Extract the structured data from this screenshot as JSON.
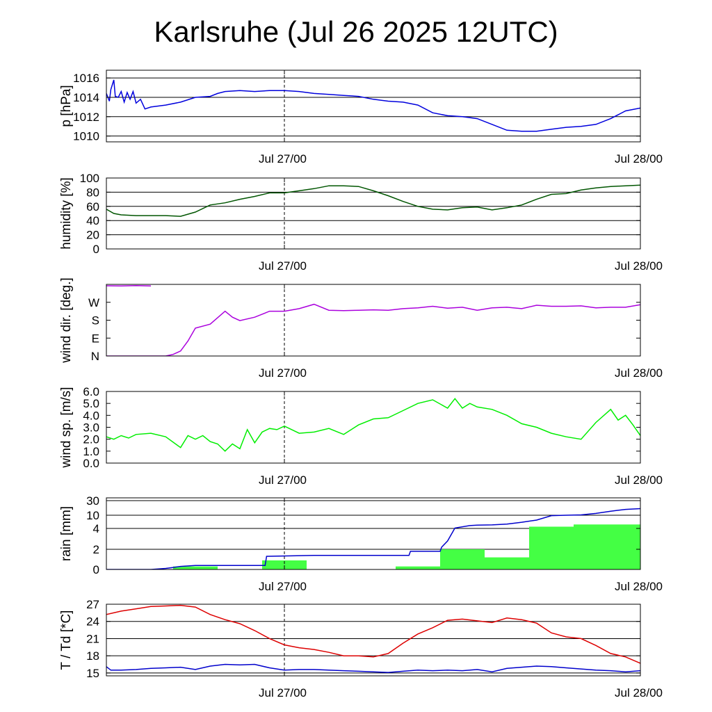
{
  "title": "Karlsruhe (Jul 26 2025 12UTC)",
  "x_axis": {
    "tick_labels": [
      "Jul 27/00",
      "Jul 28/00"
    ],
    "ticks_h": [
      12,
      36
    ],
    "range_h": [
      0,
      36
    ]
  },
  "colors": {
    "pressure": "#0000dd",
    "humidity": "#005500",
    "wind_dir": "#aa00dd",
    "wind_speed": "#00ee00",
    "rain_bar": "#44ff44",
    "rain_cum": "#0000cc",
    "temperature": "#dd0000",
    "dewpoint": "#0000cc"
  },
  "chart_data": [
    {
      "type": "line",
      "ylabel": "p [hPa]",
      "ylim": [
        1009.4,
        1016.8
      ],
      "yticks": [
        1010,
        1012,
        1014,
        1016
      ],
      "ytick_labels": [
        "1010",
        "1012",
        "1014",
        "1016"
      ],
      "grid": true,
      "series": [
        {
          "color_key": "pressure",
          "x": [
            0,
            0.2,
            0.3,
            0.5,
            0.6,
            0.8,
            1.0,
            1.2,
            1.4,
            1.6,
            1.8,
            2.0,
            2.3,
            2.6,
            3,
            4,
            5,
            6,
            7,
            7.5,
            8,
            9,
            10,
            11,
            12,
            13,
            14,
            15,
            16,
            17,
            18,
            19,
            20,
            21,
            22,
            23,
            24,
            25,
            26,
            27,
            28,
            29,
            30,
            31,
            32,
            33,
            34,
            35,
            36
          ],
          "y": [
            1014.4,
            1013.6,
            1014.8,
            1015.8,
            1014.1,
            1014.0,
            1014.6,
            1013.5,
            1014.5,
            1013.8,
            1014.6,
            1013.4,
            1013.8,
            1012.8,
            1013.0,
            1013.2,
            1013.5,
            1014.0,
            1014.1,
            1014.4,
            1014.6,
            1014.7,
            1014.6,
            1014.7,
            1014.7,
            1014.6,
            1014.4,
            1014.3,
            1014.2,
            1014.1,
            1013.8,
            1013.6,
            1013.5,
            1013.2,
            1012.4,
            1012.1,
            1012.0,
            1011.8,
            1011.2,
            1010.6,
            1010.5,
            1010.5,
            1010.7,
            1010.9,
            1011.0,
            1011.2,
            1011.8,
            1012.6,
            1012.9
          ]
        }
      ]
    },
    {
      "type": "line",
      "ylabel": "humidity [%]",
      "ylim": [
        0,
        100
      ],
      "yticks": [
        0,
        20,
        40,
        60,
        80,
        100
      ],
      "ytick_labels": [
        "0",
        "20",
        "40",
        "60",
        "80",
        "100"
      ],
      "grid": true,
      "series": [
        {
          "color_key": "humidity",
          "x": [
            0,
            0.5,
            1,
            2,
            3,
            4,
            5,
            6,
            7,
            8,
            9,
            10,
            11,
            12,
            13,
            14,
            15,
            16,
            17,
            18,
            19,
            20,
            21,
            22,
            23,
            24,
            25,
            26,
            27,
            28,
            29,
            30,
            31,
            32,
            33,
            34,
            35,
            36
          ],
          "y": [
            56,
            50,
            48,
            47,
            47,
            47,
            46,
            52,
            62,
            65,
            70,
            74,
            79,
            79,
            82,
            85,
            89,
            89,
            88,
            82,
            75,
            67,
            60,
            56,
            55,
            58,
            59,
            55,
            58,
            62,
            70,
            77,
            78,
            83,
            86,
            88,
            89,
            90
          ]
        }
      ]
    },
    {
      "type": "line",
      "ylabel": "wind dir. [deg.]",
      "ylim": [
        0,
        360
      ],
      "yticks": [
        0,
        90,
        180,
        270
      ],
      "ytick_labels": [
        "N",
        "E",
        "S",
        "W"
      ],
      "grid": false,
      "series": [
        {
          "color_key": "wind_dir",
          "x": [
            0,
            1,
            2,
            3
          ],
          "y": [
            353,
            352,
            354,
            352
          ]
        },
        {
          "color_key": "wind_dir",
          "x": [
            0,
            1,
            2,
            3,
            4,
            4.5,
            5,
            5.5,
            6,
            7,
            8,
            8.5,
            9,
            10,
            11,
            12,
            13,
            14,
            15,
            16,
            17,
            18,
            19,
            20,
            21,
            22,
            23,
            24,
            25,
            26,
            27,
            28,
            29,
            30,
            31,
            32,
            33,
            34,
            35,
            36
          ],
          "y": [
            0,
            0,
            0,
            0,
            0,
            8,
            25,
            75,
            140,
            160,
            225,
            195,
            178,
            195,
            225,
            225,
            238,
            260,
            230,
            228,
            230,
            232,
            230,
            238,
            242,
            250,
            240,
            245,
            230,
            242,
            245,
            238,
            255,
            250,
            250,
            252,
            242,
            245,
            245,
            258
          ]
        }
      ]
    },
    {
      "type": "line",
      "ylabel": "wind sp. [m/s]",
      "ylim": [
        0,
        6
      ],
      "yticks": [
        0,
        1,
        2,
        3,
        4,
        5,
        6
      ],
      "ytick_labels": [
        "0.0",
        "1.0",
        "2.0",
        "3.0",
        "4.0",
        "5.0",
        "6.0"
      ],
      "grid": false,
      "series": [
        {
          "color_key": "wind_speed",
          "x": [
            0,
            0.5,
            1,
            1.5,
            2,
            3,
            4,
            5,
            5.5,
            6,
            6.5,
            7,
            7.5,
            8,
            8.5,
            9,
            9.5,
            10,
            10.5,
            11,
            11.5,
            12,
            13,
            14,
            15,
            16,
            17,
            18,
            19,
            20,
            21,
            22,
            23,
            23.5,
            24,
            24.5,
            25,
            26,
            27,
            28,
            29,
            30,
            31,
            32,
            33,
            34,
            34.5,
            35,
            35.5,
            36
          ],
          "y": [
            2.2,
            2.0,
            2.3,
            2.1,
            2.4,
            2.5,
            2.2,
            1.3,
            2.3,
            2.0,
            2.3,
            1.8,
            1.6,
            1.0,
            1.6,
            1.2,
            2.8,
            1.7,
            2.6,
            2.9,
            2.8,
            3.1,
            2.5,
            2.6,
            2.9,
            2.4,
            3.2,
            3.7,
            3.8,
            4.4,
            5.0,
            5.3,
            4.6,
            5.4,
            4.6,
            5.0,
            4.7,
            4.5,
            4.0,
            3.3,
            3.0,
            2.5,
            2.2,
            2.0,
            3.4,
            4.5,
            3.6,
            4.0,
            3.2,
            2.3
          ]
        }
      ]
    },
    {
      "type": "bar",
      "ylabel": "rain [mm]",
      "yticks": [
        0,
        2,
        4,
        10,
        30
      ],
      "ytick_labels": [
        "0",
        "2",
        "4",
        "10",
        "30"
      ],
      "grid": true,
      "bars": {
        "color_key": "rain_bar",
        "x_start": [
          4.5,
          7.5,
          10.5,
          13.5,
          19.5,
          22.5,
          25.5,
          28.5,
          31.5
        ],
        "x_end": [
          7.5,
          10.5,
          13.5,
          16.5,
          22.5,
          25.5,
          28.5,
          31.5,
          36
        ],
        "values": [
          0.3,
          0,
          0.9,
          0,
          0.3,
          2.0,
          1.2,
          4.8,
          5.8
        ]
      },
      "series": [
        {
          "color_key": "rain_cum",
          "x": [
            0,
            3,
            4,
            4.5,
            5,
            6,
            7,
            10,
            10.7,
            10.8,
            14,
            20.4,
            20.5,
            22.5,
            22.6,
            23,
            23.5,
            24.5,
            25,
            26,
            27,
            28,
            29,
            30,
            31,
            32,
            33,
            34,
            35,
            36
          ],
          "y": [
            0,
            0,
            0.1,
            0.2,
            0.3,
            0.4,
            0.4,
            0.4,
            0.4,
            1.3,
            1.4,
            1.4,
            1.8,
            1.8,
            2.2,
            2.8,
            4.2,
            5.3,
            5.5,
            5.6,
            6.0,
            6.8,
            7.8,
            9.8,
            10.0,
            10.5,
            12.5,
            15.5,
            18.0,
            19.0
          ]
        }
      ]
    },
    {
      "type": "line",
      "ylabel": "T / Td [*C]",
      "ylim": [
        14.5,
        27
      ],
      "yticks": [
        15,
        18,
        21,
        24,
        27
      ],
      "ytick_labels": [
        "15",
        "18",
        "21",
        "24",
        "27"
      ],
      "grid": true,
      "series": [
        {
          "color_key": "temperature",
          "x": [
            0,
            1,
            2,
            3,
            4,
            5,
            6,
            7,
            8,
            9,
            10,
            11,
            12,
            13,
            14,
            15,
            16,
            17,
            18,
            19,
            20,
            21,
            22,
            23,
            24,
            25,
            26,
            27,
            28,
            29,
            30,
            31,
            32,
            33,
            34,
            35,
            36
          ],
          "y": [
            25.2,
            25.8,
            26.2,
            26.6,
            26.7,
            26.8,
            26.5,
            25.2,
            24.3,
            23.6,
            22.4,
            21.0,
            19.9,
            19.4,
            19.1,
            18.6,
            18.0,
            18.0,
            17.8,
            18.4,
            20.2,
            21.8,
            22.9,
            24.2,
            24.4,
            24.1,
            23.8,
            24.6,
            24.3,
            23.7,
            22.0,
            21.3,
            21.0,
            19.8,
            18.4,
            17.8,
            16.7
          ]
        },
        {
          "color_key": "dewpoint",
          "x": [
            0,
            0.3,
            1,
            2,
            3,
            4,
            5,
            6,
            7,
            8,
            9,
            10,
            11,
            12,
            13,
            14,
            15,
            16,
            17,
            18,
            19,
            20,
            21,
            22,
            23,
            24,
            25,
            26,
            27,
            28,
            29,
            30,
            31,
            32,
            33,
            34,
            35,
            36
          ],
          "y": [
            16.1,
            15.5,
            15.5,
            15.6,
            15.8,
            15.9,
            16.0,
            15.6,
            16.2,
            16.5,
            16.4,
            16.5,
            15.9,
            15.5,
            15.6,
            15.6,
            15.5,
            15.4,
            15.3,
            15.2,
            15.1,
            15.3,
            15.5,
            15.4,
            15.5,
            15.4,
            15.6,
            15.2,
            15.8,
            16.0,
            16.2,
            16.1,
            15.9,
            15.7,
            15.5,
            15.4,
            15.2,
            15.4
          ]
        }
      ]
    }
  ]
}
